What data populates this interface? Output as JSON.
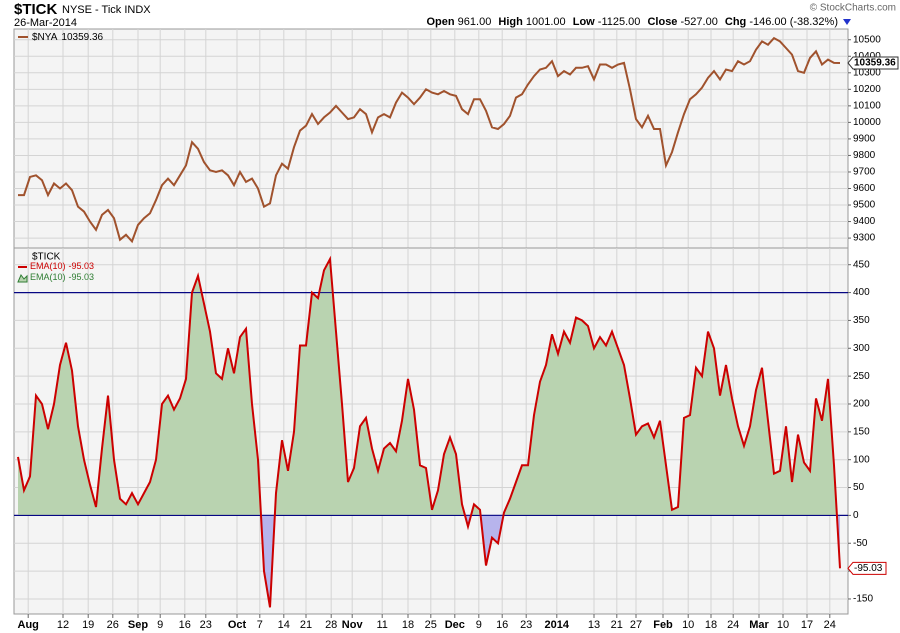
{
  "header": {
    "symbol": "$TICK",
    "name": "NYSE - Tick INDX",
    "date": "26-Mar-2014",
    "copyright": "© StockCharts.com",
    "quote": [
      {
        "label": "Open",
        "value": "961.00"
      },
      {
        "label": "High",
        "value": "1001.00"
      },
      {
        "label": "Low",
        "value": "-1125.00"
      },
      {
        "label": "Close",
        "value": "-527.00"
      },
      {
        "label": "Chg",
        "value": "-146.00 (-38.32%)"
      }
    ]
  },
  "chart_data": [
    {
      "type": "line",
      "xlim": [
        0,
        137.5
      ],
      "ylim": [
        9240,
        10565
      ],
      "grid": true,
      "yticks": [
        9300,
        9400,
        9500,
        9600,
        9700,
        9800,
        9900,
        10000,
        10100,
        10200,
        10300,
        10400,
        10500
      ],
      "series": [
        {
          "name": "$NYA",
          "color": "#a0522d",
          "values": [
            9560,
            9560,
            9670,
            9680,
            9650,
            9560,
            9630,
            9600,
            9630,
            9590,
            9490,
            9460,
            9400,
            9350,
            9440,
            9470,
            9420,
            9290,
            9320,
            9280,
            9380,
            9420,
            9450,
            9530,
            9620,
            9660,
            9620,
            9680,
            9740,
            9880,
            9840,
            9760,
            9710,
            9700,
            9710,
            9680,
            9620,
            9700,
            9640,
            9660,
            9600,
            9490,
            9510,
            9680,
            9750,
            9720,
            9850,
            9950,
            9980,
            10050,
            9990,
            10030,
            10060,
            10100,
            10060,
            10020,
            10030,
            10080,
            10050,
            9940,
            10030,
            10050,
            10030,
            10120,
            10180,
            10150,
            10110,
            10150,
            10200,
            10180,
            10170,
            10190,
            10170,
            10160,
            10080,
            10050,
            10140,
            10140,
            10070,
            9970,
            9960,
            9990,
            10040,
            10150,
            10170,
            10230,
            10280,
            10320,
            10330,
            10370,
            10280,
            10310,
            10290,
            10330,
            10330,
            10340,
            10260,
            10350,
            10350,
            10330,
            10350,
            10360,
            10200,
            10020,
            9970,
            10040,
            9960,
            9960,
            9740,
            9820,
            9940,
            10050,
            10140,
            10170,
            10210,
            10270,
            10310,
            10260,
            10320,
            10310,
            10370,
            10350,
            10370,
            10440,
            10490,
            10470,
            10510,
            10490,
            10450,
            10410,
            10310,
            10300,
            10390,
            10430,
            10350,
            10380,
            10360,
            10359.36
          ]
        }
      ]
    },
    {
      "type": "area",
      "label": "$TICK",
      "xlim": [
        0,
        137.5
      ],
      "ylim": [
        -177,
        480
      ],
      "grid": true,
      "yticks": [
        -150,
        -100,
        -50,
        0,
        50,
        100,
        150,
        200,
        250,
        300,
        350,
        400,
        450
      ],
      "hlines": [
        0,
        400
      ],
      "hline_color": "#000080",
      "xticks": [
        {
          "value": 1.7,
          "label": "Aug"
        },
        {
          "value": 7.5,
          "label": "12"
        },
        {
          "value": 11.7,
          "label": "19"
        },
        {
          "value": 15.8,
          "label": "26"
        },
        {
          "value": 20,
          "label": "Sep"
        },
        {
          "value": 23.7,
          "label": "9"
        },
        {
          "value": 27.8,
          "label": "16"
        },
        {
          "value": 31.3,
          "label": "23"
        },
        {
          "value": 36.5,
          "label": "Oct"
        },
        {
          "value": 40.3,
          "label": "7"
        },
        {
          "value": 44.3,
          "label": "14"
        },
        {
          "value": 48,
          "label": "21"
        },
        {
          "value": 52.2,
          "label": "28"
        },
        {
          "value": 55.7,
          "label": "Nov"
        },
        {
          "value": 60.7,
          "label": "11"
        },
        {
          "value": 65,
          "label": "18"
        },
        {
          "value": 68.8,
          "label": "25"
        },
        {
          "value": 72.8,
          "label": "Dec"
        },
        {
          "value": 76.8,
          "label": "9"
        },
        {
          "value": 80.7,
          "label": "16"
        },
        {
          "value": 84.7,
          "label": "23"
        },
        {
          "value": 89.8,
          "label": "2014"
        },
        {
          "value": 96,
          "label": "13"
        },
        {
          "value": 99.8,
          "label": "21"
        },
        {
          "value": 103,
          "label": "27"
        },
        {
          "value": 107.5,
          "label": "Feb"
        },
        {
          "value": 111.7,
          "label": "10"
        },
        {
          "value": 115.5,
          "label": "18"
        },
        {
          "value": 119.2,
          "label": "24"
        },
        {
          "value": 123.5,
          "label": "Mar"
        },
        {
          "value": 127.5,
          "label": "10"
        },
        {
          "value": 131.5,
          "label": "17"
        },
        {
          "value": 135.3,
          "label": "24"
        }
      ],
      "series": [
        {
          "name": "EMA(10)",
          "color": "#cc0000",
          "fill_color": "#b9d3b0",
          "negative_fill_color": "#b7b4ec",
          "values": [
            105,
            45,
            70,
            215,
            200,
            155,
            200,
            270,
            310,
            260,
            160,
            100,
            55,
            15,
            120,
            215,
            100,
            30,
            20,
            40,
            20,
            40,
            60,
            100,
            200,
            215,
            190,
            210,
            245,
            400,
            430,
            380,
            330,
            255,
            245,
            300,
            255,
            320,
            335,
            200,
            100,
            -100,
            -165,
            40,
            135,
            80,
            150,
            305,
            305,
            400,
            390,
            440,
            460,
            330,
            200,
            60,
            85,
            160,
            175,
            120,
            80,
            120,
            130,
            115,
            170,
            245,
            190,
            90,
            85,
            10,
            45,
            110,
            140,
            110,
            20,
            -20,
            20,
            10,
            -90,
            -40,
            -50,
            5,
            30,
            60,
            90,
            90,
            180,
            240,
            270,
            325,
            290,
            330,
            310,
            355,
            350,
            340,
            300,
            320,
            305,
            330,
            300,
            270,
            210,
            145,
            160,
            165,
            140,
            170,
            90,
            10,
            15,
            175,
            180,
            265,
            250,
            330,
            300,
            215,
            270,
            210,
            160,
            125,
            160,
            225,
            265,
            170,
            75,
            80,
            160,
            60,
            145,
            95,
            80,
            210,
            170,
            245,
            90,
            -95.03
          ]
        }
      ],
      "legend": [
        {
          "name": "EMA(10)",
          "color": "#cc0000",
          "kind": "line"
        },
        {
          "name": "EMA(10)",
          "color": "#2e7d32",
          "kind": "area"
        }
      ]
    }
  ]
}
